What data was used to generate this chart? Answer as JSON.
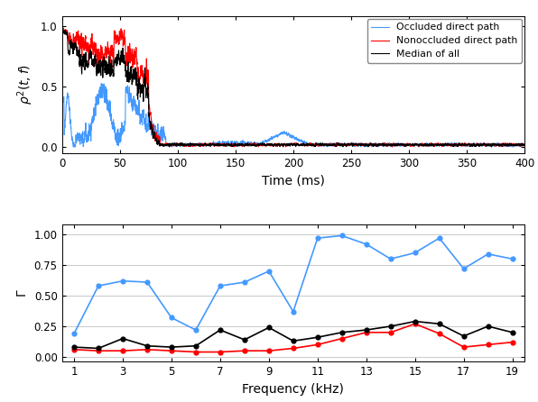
{
  "top_plot": {
    "xlabel": "Time (ms)",
    "ylabel": "$\\rho^2(t, f)$",
    "xlim": [
      0,
      400
    ],
    "ylim": [
      -0.05,
      1.08
    ],
    "yticks": [
      0,
      0.5,
      1
    ],
    "xticks": [
      0,
      50,
      100,
      150,
      200,
      250,
      300,
      350,
      400
    ],
    "blue_color": "#4499FF",
    "red_color": "#FF0000",
    "black_color": "#000000"
  },
  "bottom_plot": {
    "xlabel": "Frequency (kHz)",
    "ylabel": "$\\Gamma$",
    "xlim": [
      0.5,
      19.5
    ],
    "ylim": [
      -0.04,
      1.08
    ],
    "yticks": [
      0,
      0.25,
      0.5,
      0.75,
      1
    ],
    "xticks": [
      1,
      3,
      5,
      7,
      9,
      11,
      13,
      15,
      17,
      19
    ],
    "blue_color": "#4499FF",
    "red_color": "#FF0000",
    "black_color": "#000000",
    "blue_x": [
      1,
      2,
      3,
      4,
      5,
      6,
      7,
      8,
      9,
      10,
      11,
      12,
      13,
      14,
      15,
      16,
      17,
      18,
      19
    ],
    "blue_y": [
      0.19,
      0.58,
      0.62,
      0.61,
      0.32,
      0.22,
      0.58,
      0.61,
      0.7,
      0.37,
      0.97,
      0.99,
      0.92,
      0.8,
      0.85,
      0.97,
      0.72,
      0.84,
      0.8
    ],
    "red_x": [
      1,
      2,
      3,
      4,
      5,
      6,
      7,
      8,
      9,
      10,
      11,
      12,
      13,
      14,
      15,
      16,
      17,
      18,
      19
    ],
    "red_y": [
      0.06,
      0.05,
      0.05,
      0.06,
      0.05,
      0.04,
      0.04,
      0.05,
      0.05,
      0.07,
      0.1,
      0.15,
      0.2,
      0.2,
      0.27,
      0.19,
      0.08,
      0.1,
      0.12
    ],
    "black_x": [
      1,
      2,
      3,
      4,
      5,
      6,
      7,
      8,
      9,
      10,
      11,
      12,
      13,
      14,
      15,
      16,
      17,
      18,
      19
    ],
    "black_y": [
      0.08,
      0.07,
      0.15,
      0.09,
      0.08,
      0.09,
      0.22,
      0.14,
      0.24,
      0.13,
      0.16,
      0.2,
      0.22,
      0.25,
      0.29,
      0.27,
      0.17,
      0.25,
      0.2
    ]
  },
  "legend": {
    "blue_label": "Occluded direct path",
    "red_label": "Nonoccluded direct path",
    "black_label": "Median of all"
  }
}
